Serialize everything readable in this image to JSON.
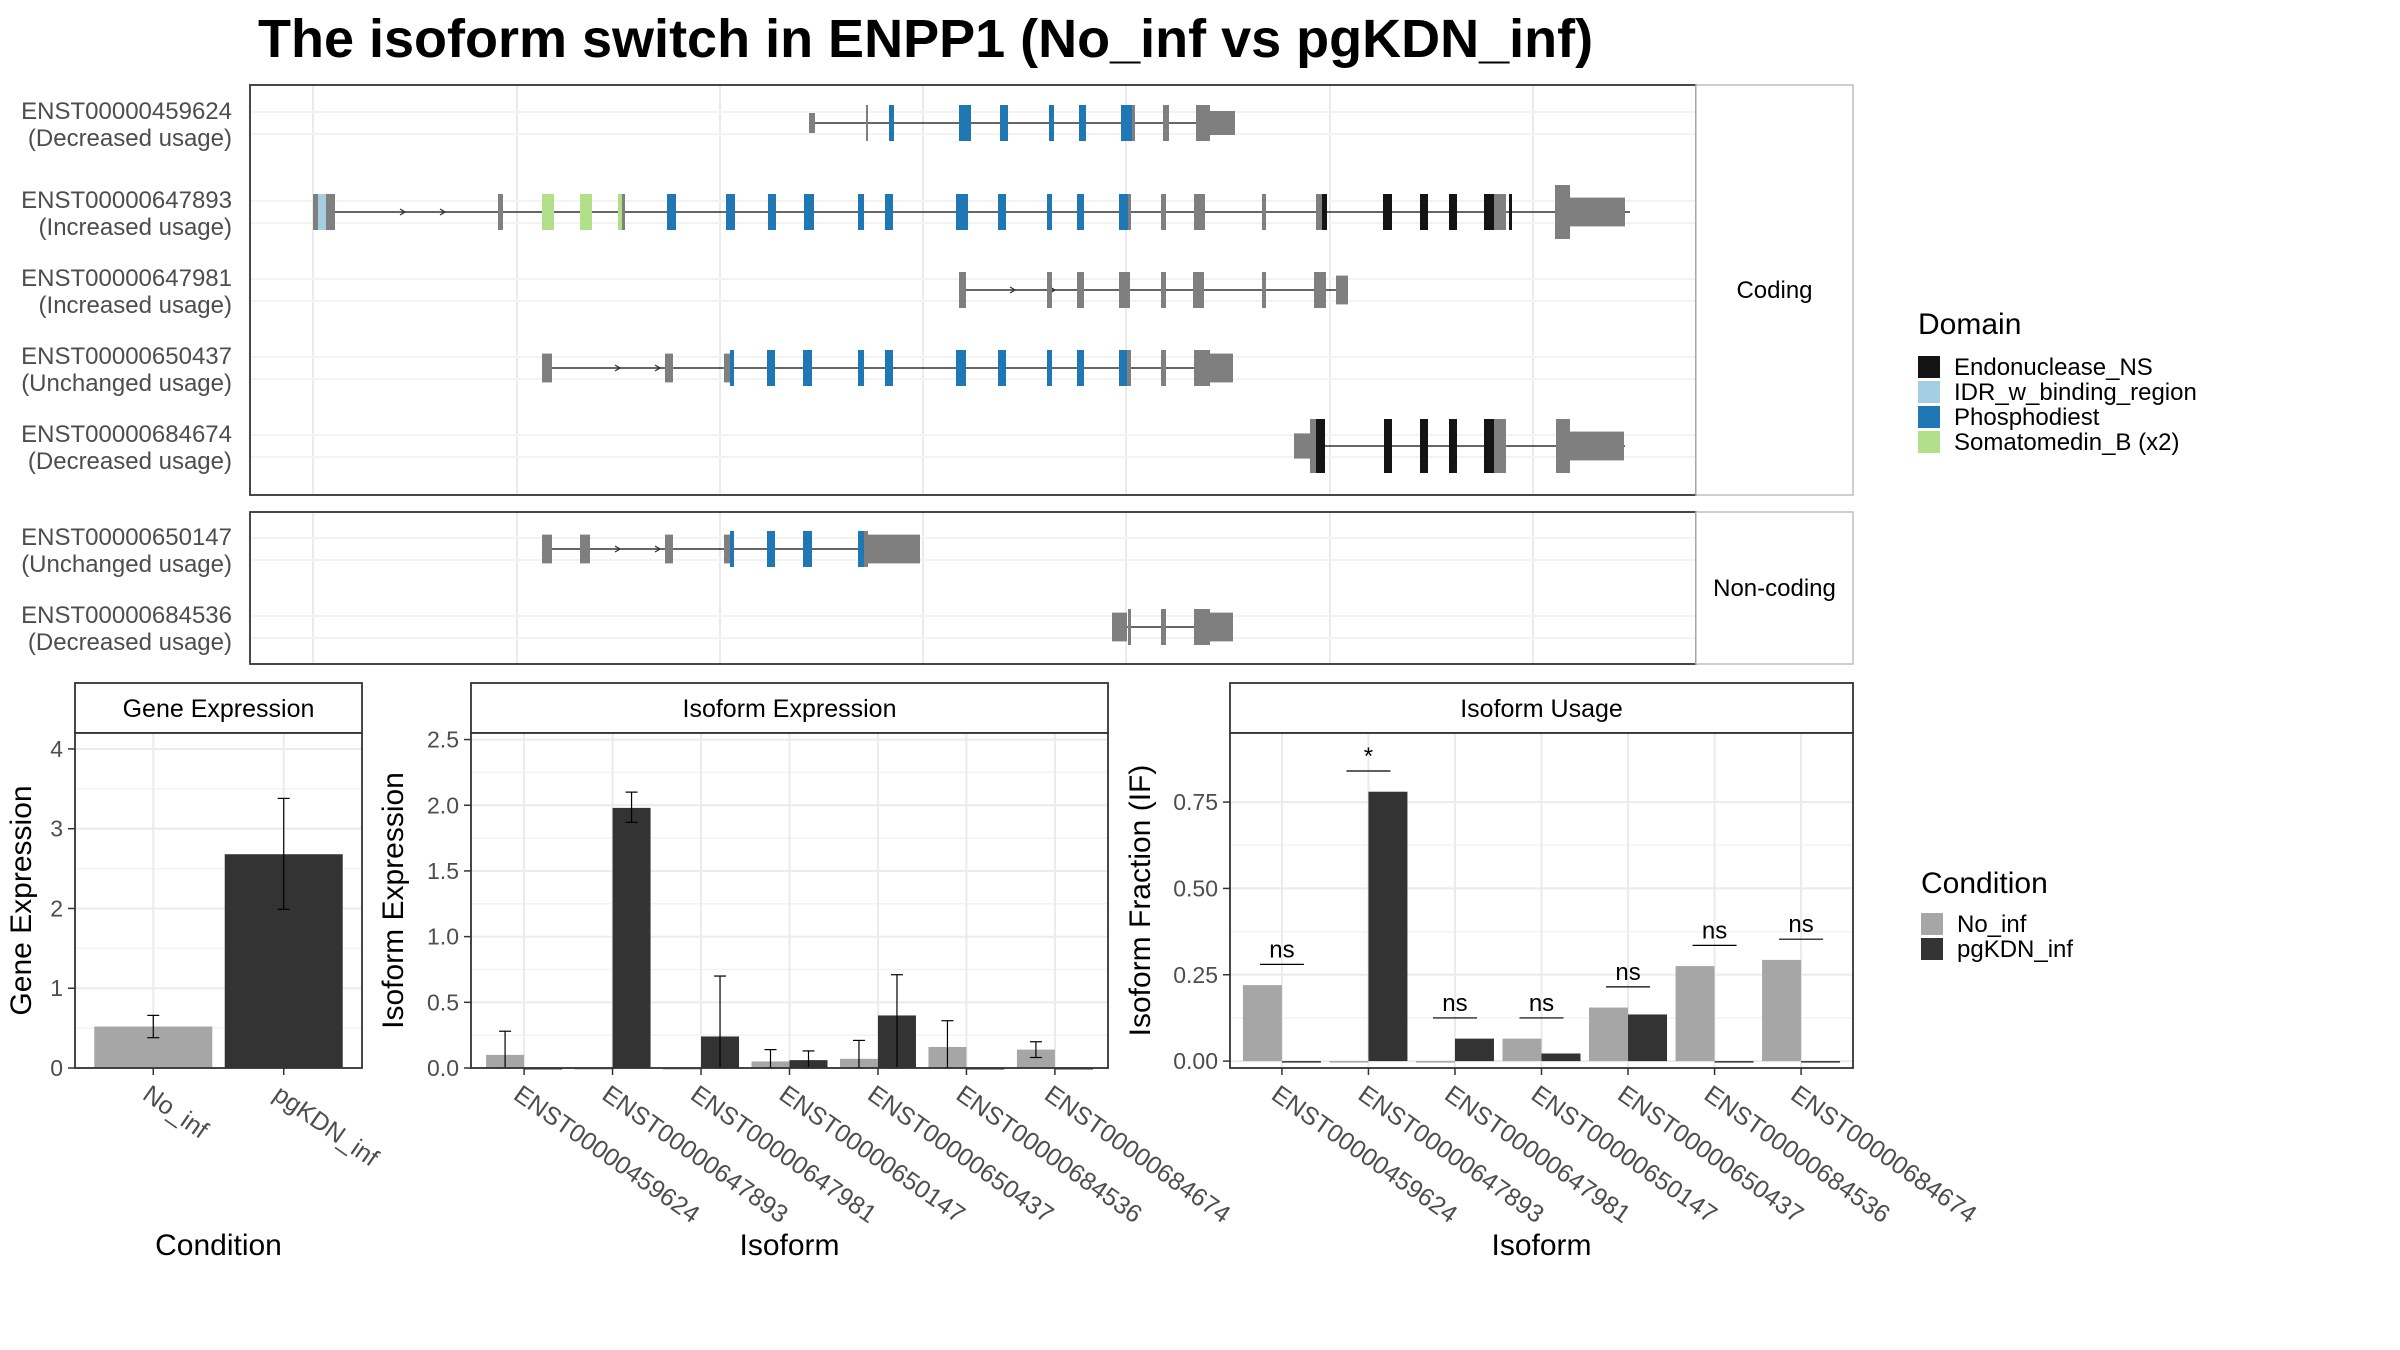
{
  "title": "The isoform switch in ENPP1 (No_inf vs pgKDN_inf)",
  "colors": {
    "exon": "#7f7f7f",
    "line": "#333333",
    "grid": "#ebebeb",
    "panel_border": "#333333",
    "strip_border": "#bfbfbf",
    "cond_a": "#a6a6a6",
    "cond_b": "#333333"
  },
  "structure": {
    "domain_legend": {
      "title": "Domain",
      "items": [
        {
          "label": "Endonuclease_NS",
          "color": "#141414"
        },
        {
          "label": "IDR_w_binding_region",
          "color": "#a6cee3"
        },
        {
          "label": "Phosphodiest",
          "color": "#1f78b4"
        },
        {
          "label": "Somatomedin_B (x2)",
          "color": "#b2df8a"
        }
      ]
    },
    "panels": [
      {
        "strip": "Coding",
        "isoforms": [
          {
            "id": "ENST00000459624",
            "status": "(Decreased usage)"
          },
          {
            "id": "ENST00000647893",
            "status": "(Increased usage)"
          },
          {
            "id": "ENST00000647981",
            "status": "(Increased usage)"
          },
          {
            "id": "ENST00000650437",
            "status": "(Unchanged usage)"
          },
          {
            "id": "ENST00000684674",
            "status": "(Decreased usage)"
          }
        ]
      },
      {
        "strip": "Non-coding",
        "isoforms": [
          {
            "id": "ENST00000650147",
            "status": "(Unchanged usage)"
          },
          {
            "id": "ENST00000684536",
            "status": "(Decreased usage)"
          }
        ]
      }
    ]
  },
  "condition_legend": {
    "title": "Condition",
    "items": [
      {
        "label": "No_inf",
        "color": "#a6a6a6"
      },
      {
        "label": "pgKDN_inf",
        "color": "#333333"
      }
    ]
  },
  "chart_data": [
    {
      "type": "bar",
      "title": "Gene Expression",
      "xlabel": "Condition",
      "ylabel": "Gene Expression",
      "ylim": [
        0,
        4.2
      ],
      "yticks": [
        0,
        1,
        2,
        3,
        4
      ],
      "ytick_labels": [
        "0",
        "1",
        "2",
        "3",
        "4"
      ],
      "categories": [
        "No_inf",
        "pgKDN_inf"
      ],
      "series": [
        {
          "name": "No_inf",
          "values": [
            0.52,
            null
          ],
          "error": [
            [
              0.38,
              0.66
            ],
            null
          ]
        },
        {
          "name": "pgKDN_inf",
          "values": [
            null,
            2.68
          ],
          "error": [
            null,
            [
              1.99,
              3.38
            ]
          ]
        }
      ]
    },
    {
      "type": "bar",
      "title": "Isoform Expression",
      "xlabel": "Isoform",
      "ylabel": "Isoform Expression",
      "ylim": [
        0,
        2.55
      ],
      "yticks": [
        0,
        0.5,
        1,
        1.5,
        2,
        2.5
      ],
      "ytick_labels": [
        "0.0",
        "0.5",
        "1.0",
        "1.5",
        "2.0",
        "2.5"
      ],
      "categories": [
        "ENST00000459624",
        "ENST00000647893",
        "ENST00000647981",
        "ENST00000650147",
        "ENST00000650437",
        "ENST00000684536",
        "ENST00000684674"
      ],
      "series": [
        {
          "name": "No_inf",
          "values": [
            0.1,
            0.0,
            0.0,
            0.05,
            0.07,
            0.16,
            0.14
          ],
          "error": [
            [
              0.0,
              0.28
            ],
            null,
            null,
            [
              0.0,
              0.14
            ],
            [
              0.0,
              0.21
            ],
            [
              0.0,
              0.36
            ],
            [
              0.08,
              0.2
            ]
          ]
        },
        {
          "name": "pgKDN_inf",
          "values": [
            0.0,
            1.98,
            0.24,
            0.06,
            0.4,
            0.0,
            0.0
          ],
          "error": [
            null,
            [
              1.87,
              2.1
            ],
            [
              0.0,
              0.7
            ],
            [
              0.0,
              0.13
            ],
            [
              0.0,
              0.71
            ],
            null,
            null
          ]
        }
      ]
    },
    {
      "type": "bar",
      "title": "Isoform Usage",
      "xlabel": "Isoform",
      "ylabel": "Isoform Fraction (IF)",
      "ylim": [
        -0.02,
        0.95
      ],
      "yticks": [
        0,
        0.25,
        0.5,
        0.75
      ],
      "ytick_labels": [
        "0.00",
        "0.25",
        "0.50",
        "0.75"
      ],
      "categories": [
        "ENST00000459624",
        "ENST00000647893",
        "ENST00000647981",
        "ENST00000650147",
        "ENST00000650437",
        "ENST00000684536",
        "ENST00000684674"
      ],
      "series": [
        {
          "name": "No_inf",
          "values": [
            0.22,
            0.0,
            0.0,
            0.065,
            0.155,
            0.275,
            0.293
          ]
        },
        {
          "name": "pgKDN_inf",
          "values": [
            0.0,
            0.78,
            0.065,
            0.022,
            0.135,
            0.0,
            0.0
          ]
        }
      ],
      "significance": [
        "ns",
        "*",
        "ns",
        "ns",
        "ns",
        "ns",
        "ns"
      ]
    }
  ]
}
